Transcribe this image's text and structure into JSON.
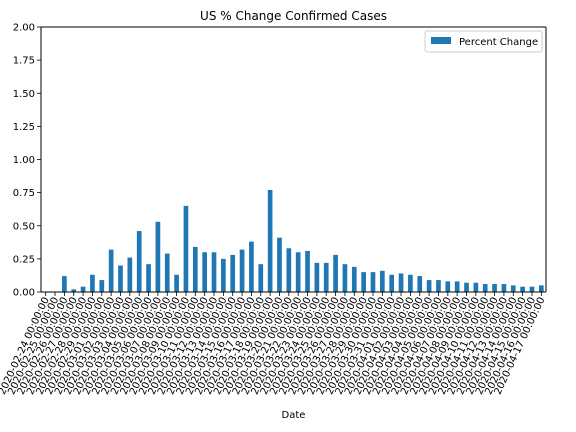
{
  "chart_data": {
    "type": "bar",
    "title": "US % Change Confirmed Cases",
    "xlabel": "Date",
    "ylabel": "",
    "ylim": [
      0,
      2.0
    ],
    "yticks": [
      "0.00",
      "0.25",
      "0.50",
      "0.75",
      "1.00",
      "1.25",
      "1.50",
      "1.75",
      "2.00"
    ],
    "grid": false,
    "legend_position": "top-right",
    "colors": {
      "bar": "#1f77b4"
    },
    "categories": [
      "2020-02-24 00:00:00",
      "2020-02-25 00:00:00",
      "2020-02-26 00:00:00",
      "2020-02-27 00:00:00",
      "2020-02-28 00:00:00",
      "2020-02-29 00:00:00",
      "2020-03-01 00:00:00",
      "2020-03-02 00:00:00",
      "2020-03-03 00:00:00",
      "2020-03-04 00:00:00",
      "2020-03-05 00:00:00",
      "2020-03-06 00:00:00",
      "2020-03-07 00:00:00",
      "2020-03-08 00:00:00",
      "2020-03-09 00:00:00",
      "2020-03-10 00:00:00",
      "2020-03-11 00:00:00",
      "2020-03-12 00:00:00",
      "2020-03-13 00:00:00",
      "2020-03-14 00:00:00",
      "2020-03-15 00:00:00",
      "2020-03-16 00:00:00",
      "2020-03-17 00:00:00",
      "2020-03-18 00:00:00",
      "2020-03-19 00:00:00",
      "2020-03-20 00:00:00",
      "2020-03-21 00:00:00",
      "2020-03-22 00:00:00",
      "2020-03-23 00:00:00",
      "2020-03-24 00:00:00",
      "2020-03-25 00:00:00",
      "2020-03-26 00:00:00",
      "2020-03-27 00:00:00",
      "2020-03-28 00:00:00",
      "2020-03-29 00:00:00",
      "2020-03-30 00:00:00",
      "2020-03-31 00:00:00",
      "2020-04-01 00:00:00",
      "2020-04-02 00:00:00",
      "2020-04-03 00:00:00",
      "2020-04-04 00:00:00",
      "2020-04-05 00:00:00",
      "2020-04-06 00:00:00",
      "2020-04-07 00:00:00",
      "2020-04-08 00:00:00",
      "2020-04-09 00:00:00",
      "2020-04-10 00:00:00",
      "2020-04-11 00:00:00",
      "2020-04-12 00:00:00",
      "2020-04-13 00:00:00",
      "2020-04-14 00:00:00",
      "2020-04-15 00:00:00",
      "2020-04-16 00:00:00",
      "2020-04-17 00:00:00"
    ],
    "series": [
      {
        "name": "Percent Change",
        "values": [
          null,
          null,
          0.12,
          0.02,
          0.04,
          0.13,
          0.09,
          0.32,
          0.2,
          0.26,
          0.46,
          0.21,
          0.53,
          0.29,
          0.13,
          0.65,
          0.34,
          0.3,
          0.3,
          0.25,
          0.28,
          0.32,
          0.38,
          0.21,
          0.77,
          0.41,
          0.33,
          0.3,
          0.31,
          0.22,
          0.22,
          0.28,
          0.21,
          0.19,
          0.15,
          0.15,
          0.16,
          0.13,
          0.14,
          0.13,
          0.12,
          0.09,
          0.09,
          0.08,
          0.08,
          0.07,
          0.07,
          0.06,
          0.06,
          0.06,
          0.05,
          0.04,
          0.04,
          0.05
        ]
      }
    ]
  }
}
